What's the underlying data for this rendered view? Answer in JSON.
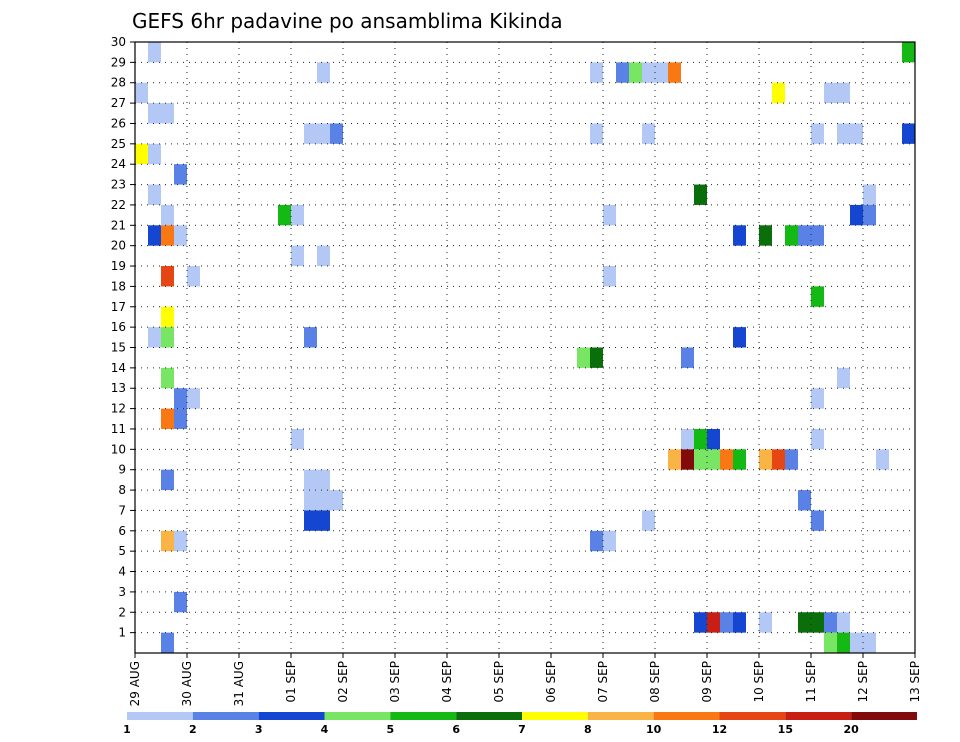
{
  "chart_data": {
    "type": "heatmap",
    "title": "GEFS 6hr padavine po ansamblima Kikinda",
    "x_tick_labels": [
      "29 AUG",
      "30 AUG",
      "31 AUG",
      "01 SEP",
      "02 SEP",
      "03 SEP",
      "04 SEP",
      "05 SEP",
      "06 SEP",
      "07 SEP",
      "08 SEP",
      "09 SEP",
      "10 SEP",
      "11 SEP",
      "12 SEP",
      "13 SEP"
    ],
    "y_tick_labels": [
      "1",
      "2",
      "3",
      "4",
      "5",
      "6",
      "7",
      "8",
      "9",
      "10",
      "11",
      "12",
      "13",
      "14",
      "15",
      "16",
      "17",
      "18",
      "19",
      "20",
      "21",
      "22",
      "23",
      "24",
      "25",
      "26",
      "27",
      "28",
      "29",
      "30"
    ],
    "xlim": [
      0,
      60
    ],
    "ylim": [
      0,
      30
    ],
    "x_unit": "6-hour steps from 29 AUG 00 UTC",
    "y_unit": "ensemble member",
    "grid": true,
    "colorbar": {
      "labels": [
        "1",
        "2",
        "3",
        "4",
        "5",
        "6",
        "7",
        "8",
        "10",
        "12",
        "15",
        "20"
      ],
      "colors": [
        "#b4c8f5",
        "#5a82e6",
        "#1446d2",
        "#78e664",
        "#14b914",
        "#0a6e0a",
        "#ffff00",
        "#fab446",
        "#fa7814",
        "#e64614",
        "#c81e14",
        "#820a0a"
      ]
    },
    "cells": [
      {
        "x": 1,
        "y": 30,
        "c": 0
      },
      {
        "x": 59,
        "y": 30,
        "c": 4
      },
      {
        "x": 14,
        "y": 29,
        "c": 0
      },
      {
        "x": 35,
        "y": 29,
        "c": 0
      },
      {
        "x": 37,
        "y": 29,
        "c": 1
      },
      {
        "x": 38,
        "y": 29,
        "c": 3
      },
      {
        "x": 39,
        "y": 29,
        "c": 0
      },
      {
        "x": 40,
        "y": 29,
        "c": 0
      },
      {
        "x": 41,
        "y": 29,
        "c": 8
      },
      {
        "x": 0,
        "y": 28,
        "c": 0
      },
      {
        "x": 49,
        "y": 28,
        "c": 6
      },
      {
        "x": 53,
        "y": 28,
        "c": 0
      },
      {
        "x": 54,
        "y": 28,
        "c": 0
      },
      {
        "x": 1,
        "y": 27,
        "c": 0
      },
      {
        "x": 2,
        "y": 27,
        "c": 0
      },
      {
        "x": 13,
        "y": 26,
        "c": 0
      },
      {
        "x": 14,
        "y": 26,
        "c": 0
      },
      {
        "x": 15,
        "y": 26,
        "c": 1
      },
      {
        "x": 35,
        "y": 26,
        "c": 0
      },
      {
        "x": 39,
        "y": 26,
        "c": 0
      },
      {
        "x": 52,
        "y": 26,
        "c": 0
      },
      {
        "x": 54,
        "y": 26,
        "c": 0
      },
      {
        "x": 55,
        "y": 26,
        "c": 0
      },
      {
        "x": 59,
        "y": 26,
        "c": 2
      },
      {
        "x": 0,
        "y": 25,
        "c": 6
      },
      {
        "x": 1,
        "y": 25,
        "c": 0
      },
      {
        "x": 3,
        "y": 24,
        "c": 1
      },
      {
        "x": 1,
        "y": 23,
        "c": 0
      },
      {
        "x": 43,
        "y": 23,
        "c": 5
      },
      {
        "x": 56,
        "y": 23,
        "c": 0
      },
      {
        "x": 2,
        "y": 22,
        "c": 0
      },
      {
        "x": 11,
        "y": 22,
        "c": 4
      },
      {
        "x": 12,
        "y": 22,
        "c": 0
      },
      {
        "x": 36,
        "y": 22,
        "c": 0
      },
      {
        "x": 55,
        "y": 22,
        "c": 2
      },
      {
        "x": 56,
        "y": 22,
        "c": 1
      },
      {
        "x": 1,
        "y": 21,
        "c": 2
      },
      {
        "x": 2,
        "y": 21,
        "c": 8
      },
      {
        "x": 3,
        "y": 21,
        "c": 0
      },
      {
        "x": 46,
        "y": 21,
        "c": 2
      },
      {
        "x": 48,
        "y": 21,
        "c": 5
      },
      {
        "x": 50,
        "y": 21,
        "c": 4
      },
      {
        "x": 51,
        "y": 21,
        "c": 1
      },
      {
        "x": 52,
        "y": 21,
        "c": 1
      },
      {
        "x": 12,
        "y": 20,
        "c": 0
      },
      {
        "x": 14,
        "y": 20,
        "c": 0
      },
      {
        "x": 2,
        "y": 19,
        "c": 9
      },
      {
        "x": 4,
        "y": 19,
        "c": 0
      },
      {
        "x": 36,
        "y": 19,
        "c": 0
      },
      {
        "x": 52,
        "y": 18,
        "c": 4
      },
      {
        "x": 2,
        "y": 17,
        "c": 6
      },
      {
        "x": 1,
        "y": 16,
        "c": 0
      },
      {
        "x": 2,
        "y": 16,
        "c": 3
      },
      {
        "x": 13,
        "y": 16,
        "c": 1
      },
      {
        "x": 46,
        "y": 16,
        "c": 2
      },
      {
        "x": 34,
        "y": 15,
        "c": 3
      },
      {
        "x": 35,
        "y": 15,
        "c": 5
      },
      {
        "x": 42,
        "y": 15,
        "c": 1
      },
      {
        "x": 2,
        "y": 14,
        "c": 3
      },
      {
        "x": 54,
        "y": 14,
        "c": 0
      },
      {
        "x": 3,
        "y": 13,
        "c": 1
      },
      {
        "x": 4,
        "y": 13,
        "c": 0
      },
      {
        "x": 52,
        "y": 13,
        "c": 0
      },
      {
        "x": 2,
        "y": 12,
        "c": 8
      },
      {
        "x": 3,
        "y": 12,
        "c": 1
      },
      {
        "x": 12,
        "y": 11,
        "c": 0
      },
      {
        "x": 42,
        "y": 11,
        "c": 0
      },
      {
        "x": 43,
        "y": 11,
        "c": 4
      },
      {
        "x": 44,
        "y": 11,
        "c": 2
      },
      {
        "x": 52,
        "y": 11,
        "c": 0
      },
      {
        "x": 41,
        "y": 10,
        "c": 7
      },
      {
        "x": 42,
        "y": 10,
        "c": 11
      },
      {
        "x": 43,
        "y": 10,
        "c": 3
      },
      {
        "x": 44,
        "y": 10,
        "c": 3
      },
      {
        "x": 45,
        "y": 10,
        "c": 8
      },
      {
        "x": 46,
        "y": 10,
        "c": 4
      },
      {
        "x": 48,
        "y": 10,
        "c": 7
      },
      {
        "x": 49,
        "y": 10,
        "c": 9
      },
      {
        "x": 50,
        "y": 10,
        "c": 1
      },
      {
        "x": 57,
        "y": 10,
        "c": 0
      },
      {
        "x": 2,
        "y": 9,
        "c": 1
      },
      {
        "x": 13,
        "y": 9,
        "c": 0
      },
      {
        "x": 14,
        "y": 9,
        "c": 0
      },
      {
        "x": 13,
        "y": 8,
        "c": 0
      },
      {
        "x": 14,
        "y": 8,
        "c": 0
      },
      {
        "x": 15,
        "y": 8,
        "c": 0
      },
      {
        "x": 51,
        "y": 8,
        "c": 1
      },
      {
        "x": 13,
        "y": 7,
        "c": 2
      },
      {
        "x": 14,
        "y": 7,
        "c": 2
      },
      {
        "x": 39,
        "y": 7,
        "c": 0
      },
      {
        "x": 52,
        "y": 7,
        "c": 1
      },
      {
        "x": 2,
        "y": 6,
        "c": 7
      },
      {
        "x": 3,
        "y": 6,
        "c": 0
      },
      {
        "x": 35,
        "y": 6,
        "c": 1
      },
      {
        "x": 36,
        "y": 6,
        "c": 0
      },
      {
        "x": 3,
        "y": 3,
        "c": 1
      },
      {
        "x": 43,
        "y": 2,
        "c": 2
      },
      {
        "x": 44,
        "y": 2,
        "c": 10
      },
      {
        "x": 45,
        "y": 2,
        "c": 1
      },
      {
        "x": 46,
        "y": 2,
        "c": 2
      },
      {
        "x": 48,
        "y": 2,
        "c": 0
      },
      {
        "x": 51,
        "y": 2,
        "c": 5
      },
      {
        "x": 52,
        "y": 2,
        "c": 5
      },
      {
        "x": 53,
        "y": 2,
        "c": 1
      },
      {
        "x": 54,
        "y": 2,
        "c": 0
      },
      {
        "x": 2,
        "y": 1,
        "c": 1
      },
      {
        "x": 53,
        "y": 1,
        "c": 3
      },
      {
        "x": 54,
        "y": 1,
        "c": 4
      },
      {
        "x": 55,
        "y": 1,
        "c": 0
      },
      {
        "x": 56,
        "y": 1,
        "c": 0
      }
    ]
  }
}
